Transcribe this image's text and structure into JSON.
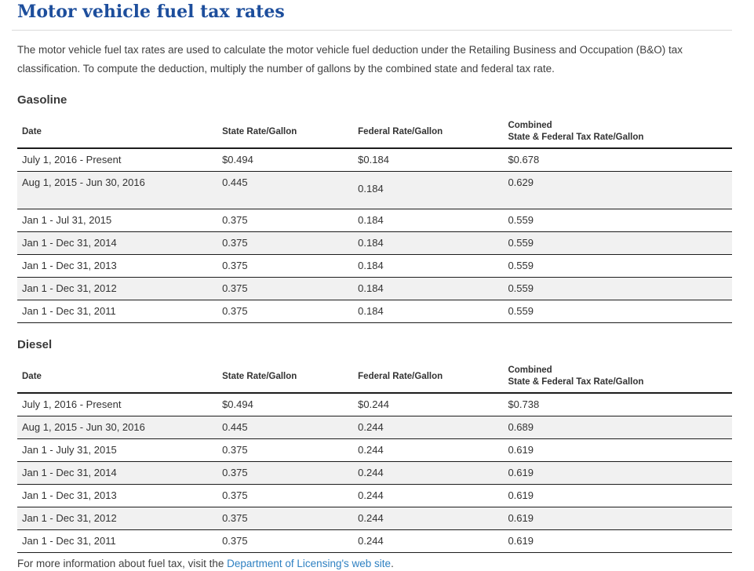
{
  "page": {
    "title": "Motor vehicle fuel tax rates",
    "intro": "The motor vehicle fuel tax rates are used to calculate the motor vehicle fuel deduction under the Retailing Business and Occupation (B&O) tax classification. To compute the deduction, multiply the number of gallons by the combined state and federal tax rate.",
    "footer": {
      "text_before_link": "For more information about fuel tax, visit the ",
      "link_text": "Department of Licensing's web site",
      "text_after_link": "."
    }
  },
  "colors": {
    "title_blue": "#1d4e9c",
    "link_blue": "#2e80c2",
    "body_text": "#3b3b3b",
    "stripe_background": "#f1f1f1",
    "table_border": "#1c1c1c"
  },
  "tables": [
    {
      "section": "Gasoline",
      "headers": {
        "date": "Date",
        "state": "State Rate/Gallon",
        "federal": "Federal Rate/Gallon",
        "combined_line1": "Combined",
        "combined_line2": "State & Federal Tax Rate/Gallon"
      },
      "rows": [
        [
          "July 1, 2016 - Present",
          "$0.494",
          "$0.184",
          "$0.678"
        ],
        [
          "Aug 1, 2015 - Jun 30, 2016",
          "0.445",
          "0.184",
          "0.629"
        ],
        [
          "Jan 1 - Jul 31, 2015",
          "0.375",
          "0.184",
          "0.559"
        ],
        [
          "Jan 1 - Dec 31, 2014",
          "0.375",
          "0.184",
          "0.559"
        ],
        [
          "Jan 1 - Dec 31, 2013",
          "0.375",
          "0.184",
          "0.559"
        ],
        [
          "Jan 1 - Dec 31, 2012",
          "0.375",
          "0.184",
          "0.559"
        ],
        [
          "Jan 1 - Dec 31, 2011",
          "0.375",
          "0.184",
          "0.559"
        ]
      ]
    },
    {
      "section": "Diesel",
      "headers": {
        "date": "Date",
        "state": "State Rate/Gallon",
        "federal": "Federal Rate/Gallon",
        "combined_line1": "Combined",
        "combined_line2": "State & Federal Tax Rate/Gallon"
      },
      "rows": [
        [
          "July 1, 2016 - Present",
          "$0.494",
          "$0.244",
          "$0.738"
        ],
        [
          "Aug 1, 2015 - Jun 30, 2016",
          "0.445",
          "0.244",
          "0.689"
        ],
        [
          "Jan 1 - July 31, 2015",
          "0.375",
          "0.244",
          "0.619"
        ],
        [
          "Jan 1 - Dec 31, 2014",
          "0.375",
          "0.244",
          "0.619"
        ],
        [
          "Jan 1 - Dec 31, 2013",
          "0.375",
          "0.244",
          "0.619"
        ],
        [
          "Jan 1 - Dec 31, 2012",
          "0.375",
          "0.244",
          "0.619"
        ],
        [
          "Jan 1 - Dec 31, 2011",
          "0.375",
          "0.244",
          "0.619"
        ]
      ]
    }
  ]
}
